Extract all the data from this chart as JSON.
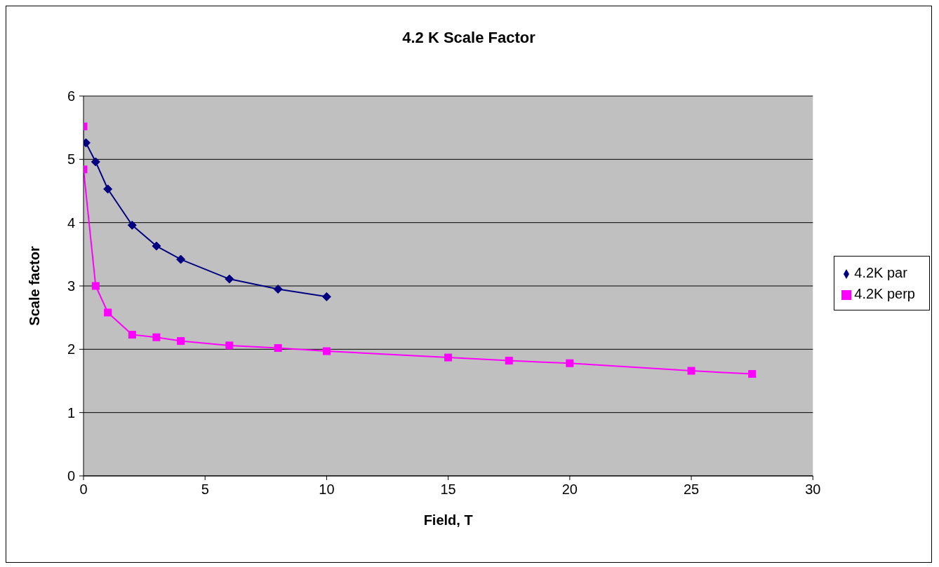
{
  "chart_data": {
    "type": "line",
    "title": "4.2 K Scale Factor",
    "xlabel": "Field, T",
    "ylabel": "Scale factor",
    "xlim": [
      0,
      30
    ],
    "xticks": [
      0,
      5,
      10,
      15,
      20,
      25,
      30
    ],
    "ylim": [
      0,
      6
    ],
    "yticks": [
      0,
      1,
      2,
      3,
      4,
      5,
      6
    ],
    "grid": "y",
    "legend": "right",
    "line_style": "solid",
    "series": [
      {
        "name": "4.2K par",
        "color": "#000080",
        "marker": "diamond",
        "x": [
          0.1,
          0.5,
          1,
          2,
          3,
          4,
          6,
          8,
          10
        ],
        "values": [
          5.26,
          4.96,
          4.53,
          3.96,
          3.63,
          3.42,
          3.11,
          2.95,
          2.83
        ]
      },
      {
        "name": "4.2K perp",
        "color": "#ff00ff",
        "marker": "square",
        "x": [
          0,
          0,
          0.5,
          1,
          2,
          3,
          4,
          6,
          8,
          10,
          15,
          17.5,
          20,
          25,
          27.5
        ],
        "values": [
          5.52,
          4.84,
          3.0,
          2.58,
          2.23,
          2.19,
          2.13,
          2.06,
          2.02,
          1.97,
          1.87,
          1.82,
          1.78,
          1.66,
          1.61
        ]
      }
    ]
  }
}
